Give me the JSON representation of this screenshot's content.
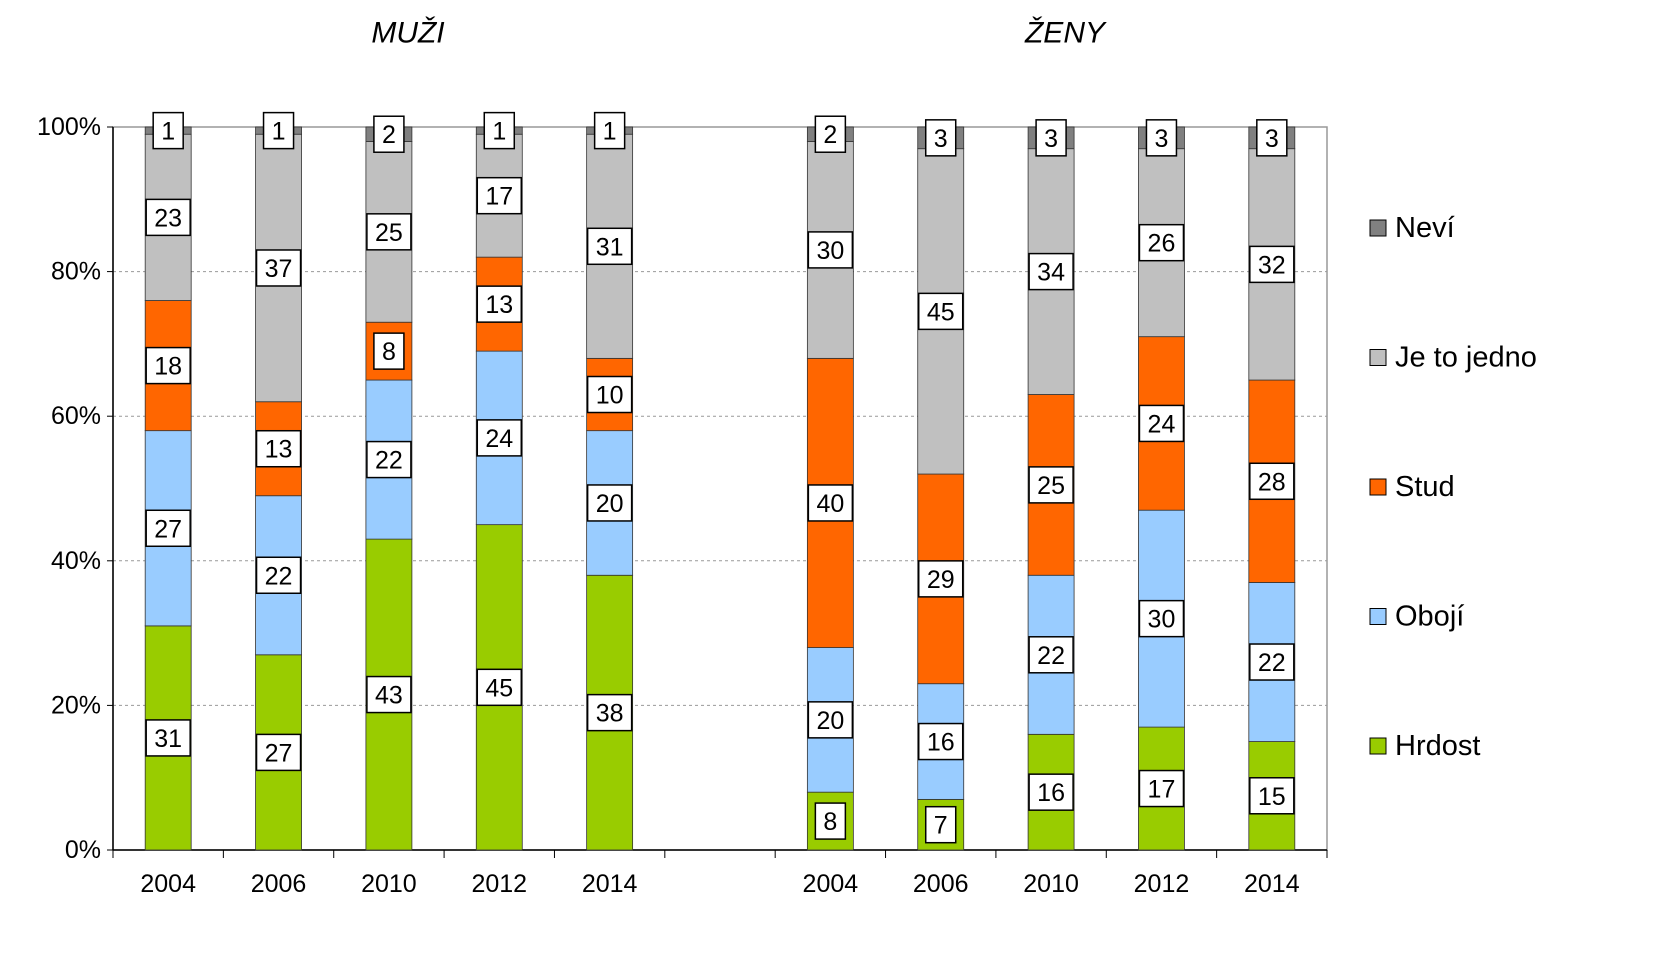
{
  "chart_data": {
    "type": "stacked_bar_100",
    "annotations": [
      "MUŽI",
      "ŽENY"
    ],
    "categories": [
      "2004",
      "2006",
      "2010",
      "2012",
      "2014",
      null,
      "2004",
      "2006",
      "2010",
      "2012",
      "2014"
    ],
    "series": [
      {
        "name": "Hrdost",
        "color": "#99cc00",
        "values": [
          31,
          27,
          43,
          45,
          38,
          null,
          8,
          7,
          16,
          17,
          15
        ]
      },
      {
        "name": "Obojí",
        "color": "#99ccff",
        "values": [
          27,
          22,
          22,
          24,
          20,
          null,
          20,
          16,
          22,
          30,
          22
        ]
      },
      {
        "name": "Stud",
        "color": "#ff6600",
        "values": [
          18,
          13,
          8,
          13,
          10,
          null,
          40,
          29,
          25,
          24,
          28
        ]
      },
      {
        "name": "Je to jedno",
        "color": "#c0c0c0",
        "values": [
          23,
          37,
          25,
          17,
          31,
          null,
          30,
          45,
          34,
          26,
          32
        ]
      },
      {
        "name": "Neví",
        "color": "#808080",
        "values": [
          1,
          1,
          2,
          1,
          1,
          null,
          2,
          3,
          3,
          3,
          3
        ]
      }
    ],
    "ylim": [
      0,
      100
    ],
    "yticks": [
      {
        "value": 0,
        "label": "0%"
      },
      {
        "value": 20,
        "label": "20%"
      },
      {
        "value": 40,
        "label": "40%"
      },
      {
        "value": 60,
        "label": "60%"
      },
      {
        "value": 80,
        "label": "80%"
      },
      {
        "value": 100,
        "label": "100%"
      }
    ],
    "grid": true,
    "legend": "right"
  }
}
